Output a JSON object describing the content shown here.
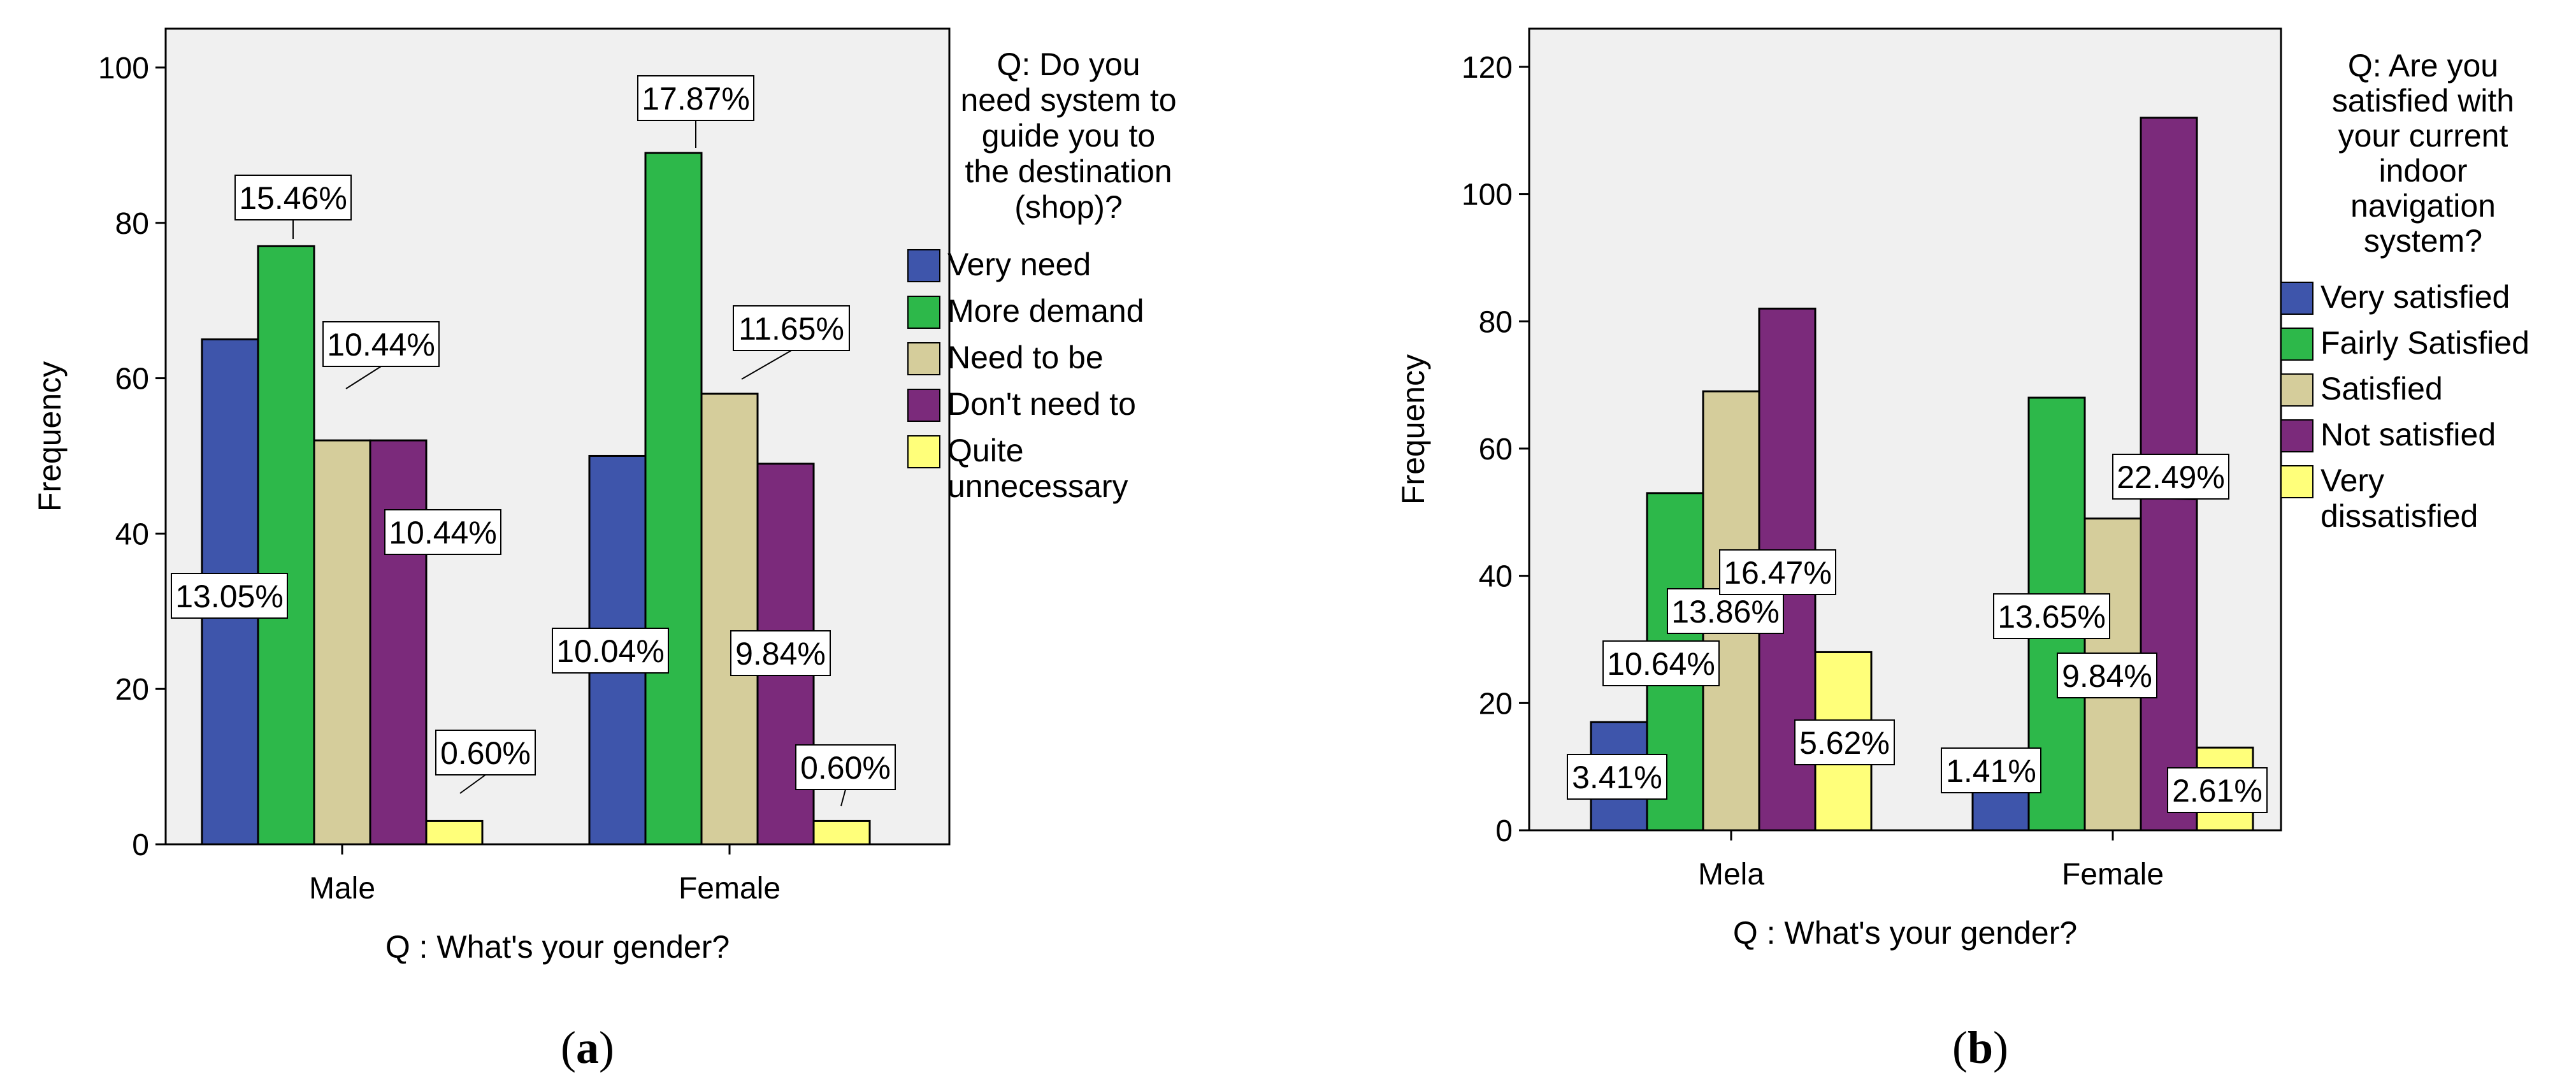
{
  "chart_data": [
    {
      "type": "bar",
      "caption_label": "a",
      "categories": [
        "Male",
        "Female"
      ],
      "xlabel": "Q : What's your gender?",
      "ylabel": "Frequency",
      "ylim": [
        0,
        105
      ],
      "yticks": [
        0,
        20,
        40,
        60,
        80,
        100
      ],
      "legend_title": [
        "Q: Do you",
        "need system to",
        "guide you to",
        "the destination",
        "(shop)?"
      ],
      "legend_position": "right",
      "series": [
        {
          "name": [
            "Very need"
          ],
          "color": "#3e55ab",
          "values": [
            65,
            50
          ],
          "labels": [
            "13.05%",
            "10.04%"
          ]
        },
        {
          "name": [
            "More demand"
          ],
          "color": "#2db84a",
          "values": [
            77,
            89
          ],
          "labels": [
            "15.46%",
            "17.87%"
          ]
        },
        {
          "name": [
            "Need to be"
          ],
          "color": "#d5cd9b",
          "values": [
            52,
            58
          ],
          "labels": [
            "10.44%",
            "11.65%"
          ]
        },
        {
          "name": [
            "Don't need to"
          ],
          "color": "#7b2a7b",
          "values": [
            52,
            49
          ],
          "labels": [
            "10.44%",
            "9.84%"
          ]
        },
        {
          "name": [
            "Quite",
            "unnecessary"
          ],
          "color": "#ffff7a",
          "values": [
            3,
            3
          ],
          "labels": [
            "0.60%",
            "0.60%"
          ]
        }
      ]
    },
    {
      "type": "bar",
      "caption_label": "b",
      "categories": [
        "Mela",
        "Female"
      ],
      "xlabel": "Q : What's your gender?",
      "ylabel": "Frequency",
      "ylim": [
        0,
        126
      ],
      "yticks": [
        0,
        20,
        40,
        60,
        80,
        100,
        120
      ],
      "legend_title": [
        "Q: Are you",
        "satisfied with",
        "your current",
        "indoor",
        "navigation",
        "system?"
      ],
      "legend_position": "right",
      "series": [
        {
          "name": [
            "Very satisfied"
          ],
          "color": "#3e55ab",
          "values": [
            17,
            7
          ],
          "labels": [
            "3.41%",
            "1.41%"
          ]
        },
        {
          "name": [
            "Fairly Satisfied"
          ],
          "color": "#2db84a",
          "values": [
            53,
            68
          ],
          "labels": [
            "10.64%",
            "13.65%"
          ]
        },
        {
          "name": [
            "Satisfied"
          ],
          "color": "#d5cd9b",
          "values": [
            69,
            49
          ],
          "labels": [
            "13.86%",
            "9.84%"
          ]
        },
        {
          "name": [
            "Not satisfied"
          ],
          "color": "#7b2a7b",
          "values": [
            82,
            112
          ],
          "labels": [
            "16.47%",
            "22.49%"
          ]
        },
        {
          "name": [
            "Very",
            "dissatisfied"
          ],
          "color": "#ffff7a",
          "values": [
            28,
            13
          ],
          "labels": [
            "5.62%",
            "2.61%"
          ]
        }
      ]
    }
  ]
}
